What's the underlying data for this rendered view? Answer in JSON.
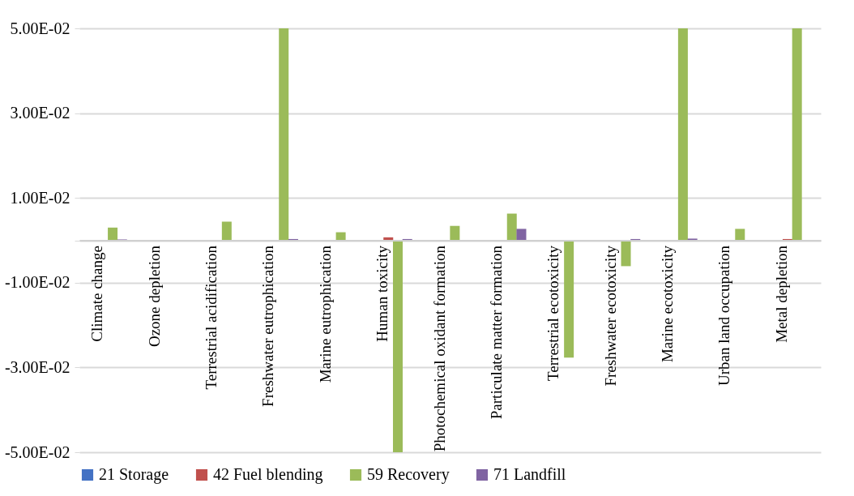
{
  "chart_data": {
    "type": "bar",
    "categories": [
      "Climate change",
      "Ozone depletion",
      "Terrestrial acidification",
      "Freshwater eutrophication",
      "Marine eutrophication",
      "Human toxicity",
      "Photochemical oxidant formation",
      "Particulate matter formation",
      "Terrestrial ecotoxicity",
      "Freshwater ecotoxicity",
      "Marine ecotoxicity",
      "Urban land occupation",
      "Metal depletion"
    ],
    "series": [
      {
        "name": "21 Storage",
        "color": "#4472c4",
        "values": [
          0,
          0,
          0,
          0,
          0,
          0,
          0,
          0,
          0,
          0,
          0,
          0,
          0
        ]
      },
      {
        "name": "42 Fuel blending",
        "color": "#c0504d",
        "values": [
          0,
          0,
          0,
          0,
          0,
          0.0007,
          0,
          0,
          0,
          0,
          0,
          0,
          0.0003
        ]
      },
      {
        "name": "59 Recovery",
        "color": "#9bbb59",
        "values": [
          0.003,
          0,
          0.0044,
          0.05,
          0.0019,
          -0.05,
          0.0034,
          0.0063,
          -0.0277,
          -0.0061,
          0.05,
          0.0027,
          0.05
        ]
      },
      {
        "name": "71 Landfill",
        "color": "#8064a2",
        "values": [
          0.0002,
          0,
          0,
          0.0003,
          0,
          0.0003,
          0,
          0.0027,
          0,
          0.0003,
          0.0004,
          0,
          0
        ]
      }
    ],
    "ylim": [
      -0.05,
      0.05
    ],
    "yticks": [
      {
        "value": -0.05,
        "label": "-5.00E-02"
      },
      {
        "value": -0.03,
        "label": "-3.00E-02"
      },
      {
        "value": -0.01,
        "label": "-1.00E-02"
      },
      {
        "value": 0,
        "label": null
      },
      {
        "value": 0.01,
        "label": "1.00E-02"
      },
      {
        "value": 0.03,
        "label": "3.00E-02"
      },
      {
        "value": 0.05,
        "label": "5.00E-02"
      }
    ],
    "grid": "y",
    "legend": "bottom"
  }
}
